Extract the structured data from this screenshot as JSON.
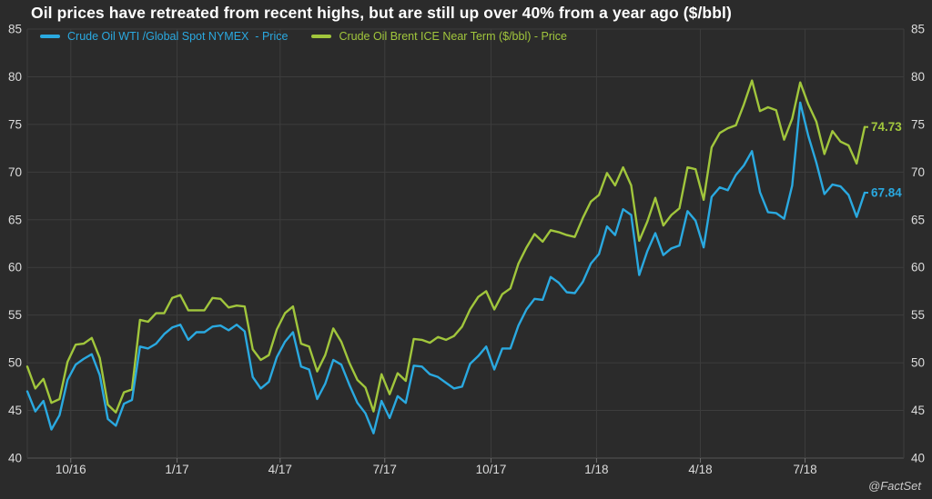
{
  "title": "Oil prices have retreated from recent highs, but are still up over 40% from a year ago ($/bbl)",
  "attribution": "@FactSet",
  "colors": {
    "background": "#2b2b2b",
    "grid": "#3d3d3d",
    "axis_line": "#545454",
    "tick_mark": "#6e6e6e",
    "axis_text": "#dcdcdc",
    "title_text": "#ffffff",
    "wti_blue": "#2aa9e0",
    "brent_green": "#a1c63c"
  },
  "chart_data": {
    "type": "line",
    "title": "Oil prices have retreated from recent highs, but are still up over 40% from a year ago ($/bbl)",
    "ylim": [
      40,
      85
    ],
    "y_ticks": [
      40,
      45,
      50,
      55,
      60,
      65,
      70,
      75,
      80,
      85
    ],
    "y_axis_sides": "both",
    "grid": true,
    "legend_position": "top-left",
    "x_range_weeks": [
      0,
      104
    ],
    "x_ticks": [
      {
        "label": "10/16",
        "pos": 5.4
      },
      {
        "label": "1/17",
        "pos": 18.6
      },
      {
        "label": "4/17",
        "pos": 31.4
      },
      {
        "label": "7/17",
        "pos": 44.4
      },
      {
        "label": "10/17",
        "pos": 57.6
      },
      {
        "label": "1/18",
        "pos": 70.7
      },
      {
        "label": "4/18",
        "pos": 83.6
      },
      {
        "label": "7/18",
        "pos": 96.6
      }
    ],
    "series": [
      {
        "name": "Crude Oil Brent ICE Near Term ($/bbl) - Price",
        "color": "#a1c63c",
        "end_label": "74.73",
        "values": [
          49.6,
          47.3,
          48.3,
          45.8,
          46.2,
          50.1,
          51.9,
          52.0,
          52.6,
          50.5,
          45.6,
          44.8,
          46.9,
          47.2,
          54.5,
          54.3,
          55.2,
          55.2,
          56.8,
          57.1,
          55.5,
          55.5,
          55.5,
          56.8,
          56.7,
          55.8,
          56.0,
          55.9,
          51.4,
          50.3,
          50.8,
          53.5,
          55.2,
          55.9,
          52.0,
          51.7,
          49.1,
          50.8,
          53.6,
          52.2,
          50.0,
          48.2,
          47.4,
          44.9,
          48.8,
          46.7,
          48.9,
          48.1,
          52.5,
          52.4,
          52.1,
          52.7,
          52.4,
          52.8,
          53.8,
          55.6,
          56.9,
          57.5,
          55.6,
          57.2,
          57.8,
          60.4,
          62.1,
          63.5,
          62.7,
          63.9,
          63.7,
          63.4,
          63.2,
          65.2,
          66.9,
          67.6,
          69.9,
          68.6,
          70.5,
          68.6,
          62.8,
          64.8,
          67.3,
          64.4,
          65.5,
          66.2,
          70.5,
          70.3,
          67.1,
          72.6,
          74.1,
          74.6,
          74.9,
          77.1,
          79.6,
          76.4,
          76.8,
          76.5,
          73.4,
          75.6,
          79.4,
          77.1,
          75.3,
          71.9,
          74.3,
          73.2,
          72.8,
          70.9,
          74.73
        ]
      },
      {
        "name": "Crude Oil WTI /Global Spot NYMEX  - Price",
        "color": "#2aa9e0",
        "end_label": "67.84",
        "values": [
          47.0,
          44.9,
          46.0,
          43.0,
          44.5,
          48.2,
          49.8,
          50.4,
          50.9,
          48.7,
          44.1,
          43.4,
          45.7,
          46.1,
          51.7,
          51.5,
          52.0,
          53.0,
          53.7,
          54.0,
          52.4,
          53.2,
          53.2,
          53.8,
          53.9,
          53.4,
          54.0,
          53.3,
          48.5,
          47.3,
          48.0,
          50.6,
          52.2,
          53.2,
          49.6,
          49.3,
          46.2,
          47.8,
          50.3,
          49.8,
          47.7,
          45.8,
          44.7,
          42.6,
          46.0,
          44.2,
          46.5,
          45.8,
          49.7,
          49.6,
          48.8,
          48.5,
          47.9,
          47.3,
          47.5,
          49.9,
          50.7,
          51.7,
          49.3,
          51.5,
          51.5,
          53.9,
          55.6,
          56.7,
          56.6,
          59.0,
          58.4,
          57.4,
          57.3,
          58.5,
          60.4,
          61.4,
          64.3,
          63.4,
          66.1,
          65.5,
          59.2,
          61.7,
          63.6,
          61.3,
          62.0,
          62.3,
          65.9,
          64.9,
          62.1,
          67.4,
          68.4,
          68.1,
          69.7,
          70.7,
          72.2,
          67.9,
          65.8,
          65.7,
          65.1,
          68.6,
          77.3,
          73.8,
          71.0,
          67.7,
          68.7,
          68.5,
          67.6,
          65.3,
          67.84
        ]
      }
    ]
  },
  "legend": {
    "wti_label": "Crude Oil WTI /Global Spot NYMEX  - Price",
    "brent_label": "Crude Oil Brent ICE Near Term ($/bbl) - Price"
  }
}
